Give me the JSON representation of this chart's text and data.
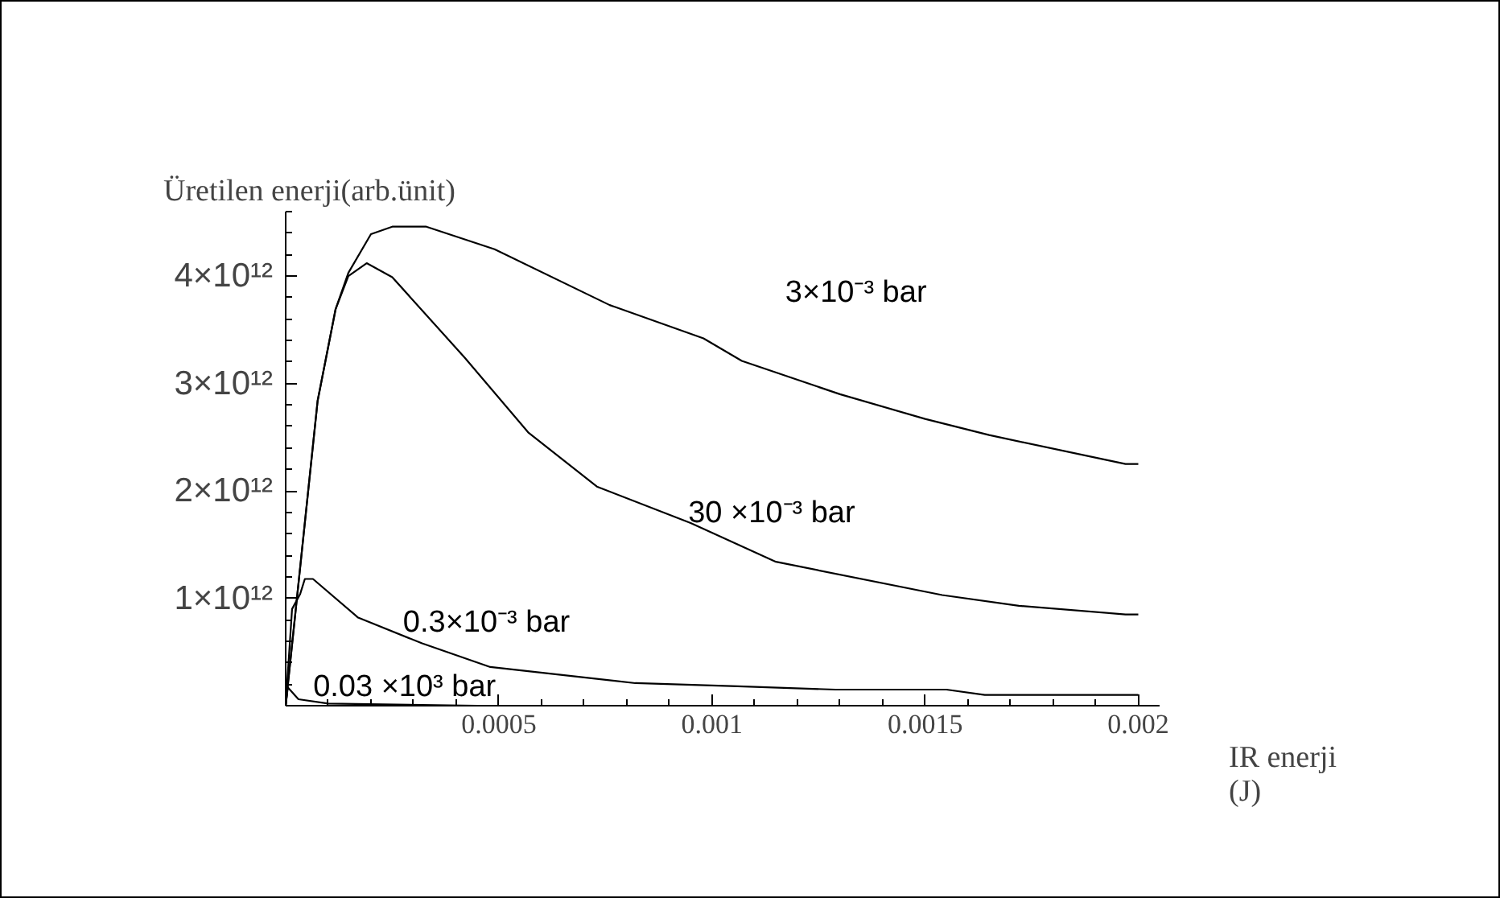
{
  "chart_data": {
    "type": "line",
    "xlabel": "IR enerji\n(J)",
    "ylabel": "Üretilen enerji(arb.ünit)",
    "xlim": [
      0,
      0.00205
    ],
    "ylim": [
      0,
      4600000000000.0
    ],
    "xticks": [
      0.0005,
      0.001,
      0.0015,
      0.002
    ],
    "yticks": [
      {
        "value": 1000000000000.0,
        "label": "1×10¹²"
      },
      {
        "value": 2000000000000.0,
        "label": "2×10¹²"
      },
      {
        "value": 3000000000000.0,
        "label": "3×10¹²"
      },
      {
        "value": 4000000000000.0,
        "label": "4×10¹²"
      }
    ],
    "grid": false,
    "marker": "none",
    "line_style": "solid",
    "series": [
      {
        "name": "3×10⁻³ bar",
        "color": "#000000",
        "x": [
          0,
          7.5e-05,
          0.000117,
          0.000147,
          0.0002,
          0.00025,
          0.00033,
          0.00049,
          0.00076,
          0.00098,
          0.00107,
          0.0013,
          0.0015,
          0.00165,
          0.00197,
          0.002
        ],
        "values": [
          0,
          2840000000000.0,
          3690000000000.0,
          4030000000000.0,
          4390000000000.0,
          4460000000000.0,
          4460000000000.0,
          4250000000000.0,
          3730000000000.0,
          3420000000000.0,
          3210000000000.0,
          2900000000000.0,
          2670000000000.0,
          2520000000000.0,
          2250000000000.0,
          2250000000000.0
        ]
      },
      {
        "name": "30  ×10⁻³ bar",
        "color": "#000000",
        "x": [
          0,
          7.5e-05,
          0.000117,
          0.000147,
          0.00019,
          0.00025,
          0.00042,
          0.00057,
          0.00073,
          0.00095,
          0.00115,
          0.00154,
          0.00172,
          0.00197,
          0.002
        ],
        "values": [
          0,
          2840000000000.0,
          3690000000000.0,
          4000000000000.0,
          4120000000000.0,
          3990000000000.0,
          3240000000000.0,
          2540000000000.0,
          2040000000000.0,
          1700000000000.0,
          1340000000000.0,
          1030000000000.0,
          930000000000.0,
          850000000000.0,
          850000000000.0
        ]
      },
      {
        "name": "0.3×10⁻³ bar",
        "color": "#000000",
        "x": [
          0,
          1.5e-05,
          3.4e-05,
          4.5e-05,
          6.4e-05,
          0.00017,
          0.00032,
          0.00048,
          0.00082,
          0.00106,
          0.00129,
          0.00155,
          0.00164,
          0.002
        ],
        "values": [
          0,
          900000000000.0,
          1040000000000.0,
          1180000000000.0,
          1180000000000.0,
          820000000000.0,
          580000000000.0,
          360000000000.0,
          210000000000.0,
          180000000000.0,
          150000000000.0,
          150000000000.0,
          100000000000.0,
          100000000000.0
        ]
      },
      {
        "name": "0.03  ×10³ bar",
        "color": "#000000",
        "x": [
          0,
          5e-06,
          3e-05,
          0.0001,
          0.00045
        ],
        "values": [
          0,
          170000000000.0,
          60000000000.0,
          20000000000.0,
          0
        ]
      }
    ]
  }
}
